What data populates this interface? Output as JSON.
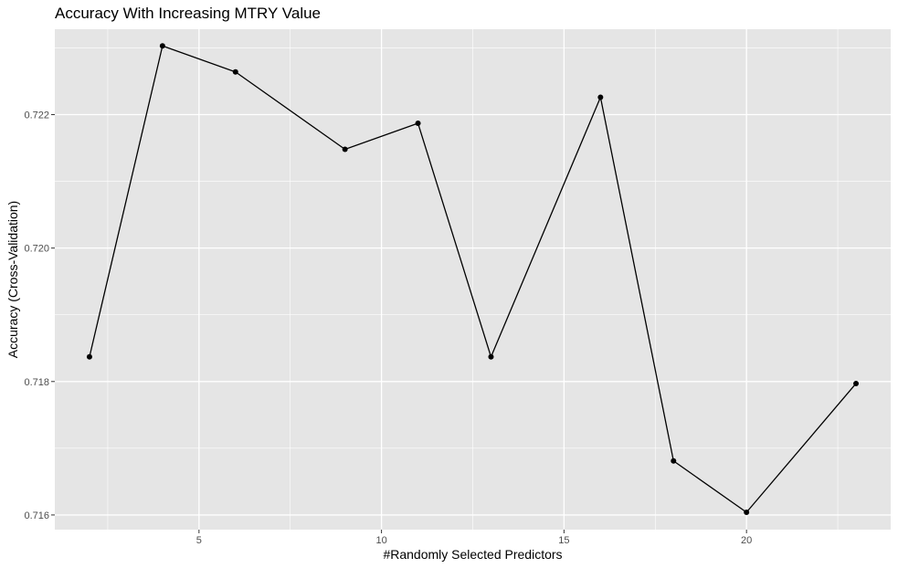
{
  "chart_data": {
    "type": "line",
    "title": "Accuracy With Increasing MTRY Value",
    "xlabel": "#Randomly Selected Predictors",
    "ylabel": "Accuracy (Cross-Validation)",
    "x": [
      2,
      4,
      6,
      9,
      11,
      13,
      16,
      18,
      20,
      23
    ],
    "series": [
      {
        "values": [
          0.71837,
          0.72303,
          0.72264,
          0.72148,
          0.72187,
          0.71837,
          0.72226,
          0.71681,
          0.71604,
          0.71797
        ]
      }
    ],
    "xlim": [
      1.05,
      23.95
    ],
    "ylim": [
      0.71578,
      0.72328
    ],
    "x_ticks": [
      5,
      10,
      15,
      20
    ],
    "x_tick_labels": [
      "5",
      "10",
      "15",
      "20"
    ],
    "y_ticks": [
      0.716,
      0.718,
      0.72,
      0.722
    ],
    "y_tick_labels": [
      "0.716",
      "0.718",
      "0.720",
      "0.722"
    ],
    "grid": true,
    "legend": "none",
    "colors": {
      "panel_background": "#e5e5e5",
      "grid": "#ffffff",
      "line": "#000000",
      "points": "#000000"
    }
  }
}
